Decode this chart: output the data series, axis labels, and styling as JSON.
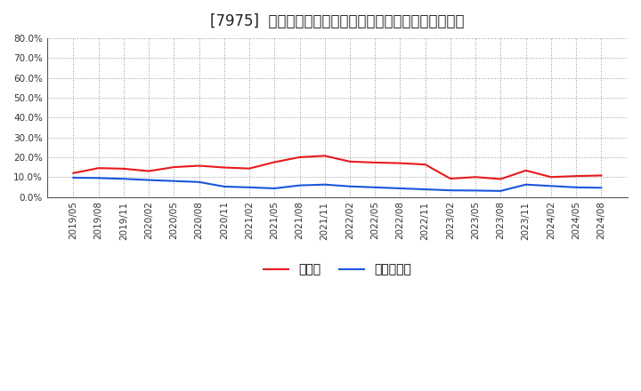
{
  "title": "[7975]  現預金、有利子負債の総資産に対する比率の推移",
  "x_labels": [
    "2019/05",
    "2019/08",
    "2019/11",
    "2020/02",
    "2020/05",
    "2020/08",
    "2020/11",
    "2021/02",
    "2021/05",
    "2021/08",
    "2021/11",
    "2022/02",
    "2022/05",
    "2022/08",
    "2022/11",
    "2023/02",
    "2023/05",
    "2023/08",
    "2023/11",
    "2024/02",
    "2024/05",
    "2024/08"
  ],
  "cash_values": [
    0.12,
    0.145,
    0.142,
    0.13,
    0.15,
    0.157,
    0.148,
    0.143,
    0.175,
    0.2,
    0.207,
    0.178,
    0.173,
    0.17,
    0.163,
    0.092,
    0.1,
    0.09,
    0.133,
    0.1,
    0.105,
    0.108
  ],
  "debt_values": [
    0.097,
    0.095,
    0.091,
    0.085,
    0.08,
    0.075,
    0.052,
    0.048,
    0.043,
    0.058,
    0.062,
    0.053,
    0.048,
    0.043,
    0.038,
    0.033,
    0.032,
    0.03,
    0.062,
    0.055,
    0.048,
    0.046
  ],
  "cash_color": "#e8191c",
  "debt_color": "#1a56db",
  "ylim": [
    0.0,
    0.8
  ],
  "yticks": [
    0.0,
    0.1,
    0.2,
    0.3,
    0.4,
    0.5,
    0.6,
    0.7,
    0.8
  ],
  "legend_cash": "現預金",
  "legend_debt": "有利子負債",
  "bg_color": "#ffffff",
  "plot_bg_color": "#ffffff",
  "grid_color": "#999999",
  "title_fontsize": 12,
  "axis_fontsize": 7.5,
  "legend_fontsize": 10
}
